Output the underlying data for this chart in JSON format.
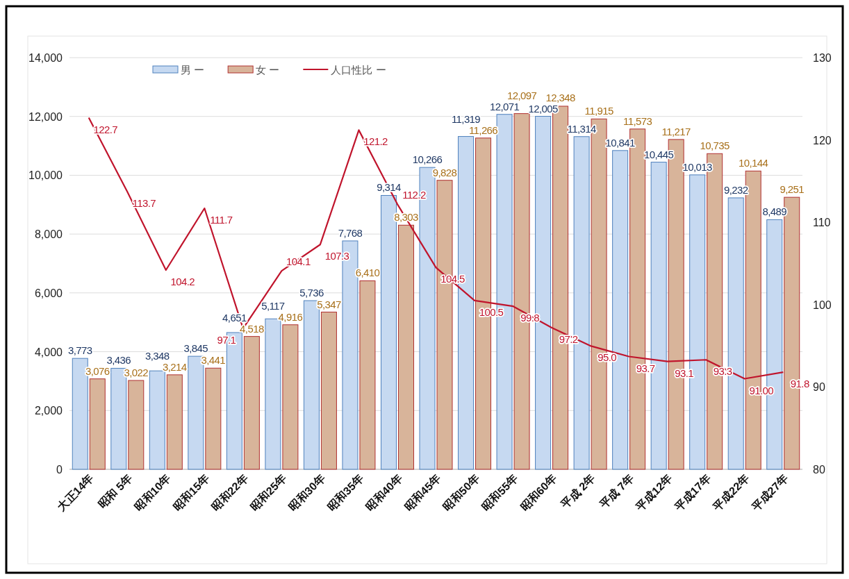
{
  "chart_data": {
    "type": "bar",
    "categories": [
      "大正14年",
      "昭和 5年",
      "昭和10年",
      "昭和15年",
      "昭和22年",
      "昭和25年",
      "昭和30年",
      "昭和35年",
      "昭和40年",
      "昭和45年",
      "昭和50年",
      "昭和55年",
      "昭和60年",
      "平成 2年",
      "平成 7年",
      "平成12年",
      "平成17年",
      "平成22年",
      "平成27年"
    ],
    "series": [
      {
        "name": "男 ー",
        "color": "#c6d9f1",
        "values": [
          3773,
          3436,
          3348,
          3845,
          4651,
          5117,
          5736,
          7768,
          9314,
          10266,
          11319,
          12071,
          12005,
          11314,
          10841,
          10445,
          10013,
          9232,
          8489
        ],
        "value_labels": [
          "3,773",
          "3,436",
          "3,348",
          "3,845",
          "4,651",
          "5,117",
          "5,736",
          "7,768",
          "9,314",
          "10,266",
          "11,319",
          "12,071",
          "12,005",
          "11,314",
          "10,841",
          "10,445",
          "10,013",
          "9,232",
          "8,489"
        ]
      },
      {
        "name": "女 ー",
        "color": "#d8b49a",
        "values": [
          3076,
          3022,
          3214,
          3441,
          4518,
          4916,
          5347,
          6410,
          8303,
          9828,
          11266,
          12097,
          12348,
          11915,
          11573,
          11217,
          10735,
          10144,
          9251
        ],
        "value_labels": [
          "3,076",
          "3,022",
          "3,214",
          "3,441",
          "4,518",
          "4,916",
          "5,347",
          "6,410",
          "8,303",
          "9,828",
          "11,266",
          "12,097",
          "12,348",
          "11,915",
          "11,573",
          "11,217",
          "10,735",
          "10,144",
          "9,251"
        ]
      },
      {
        "name": "人口性比 ー",
        "type": "line",
        "axis": "y2",
        "color": "#c0142c",
        "values": [
          122.7,
          113.7,
          104.2,
          111.7,
          97.1,
          104.1,
          107.3,
          121.2,
          112.2,
          104.5,
          100.5,
          99.8,
          97.2,
          95.0,
          93.7,
          93.1,
          93.3,
          91.0,
          91.8
        ],
        "value_labels": [
          "122.7",
          "113.7",
          "104.2",
          "111.7",
          "97.1",
          "104.1",
          "107.3",
          "121.2",
          "112.2",
          "104.5",
          "100.5",
          "99.8",
          "97.2",
          "95.0",
          "93.7",
          "93.1",
          "93.3",
          "91.00",
          "91.8"
        ]
      }
    ],
    "ylim": [
      0,
      14000
    ],
    "yticks": [
      {
        "value": 0,
        "label": "0"
      },
      {
        "value": 2000,
        "label": "2,000"
      },
      {
        "value": 4000,
        "label": "4,000"
      },
      {
        "value": 6000,
        "label": "6,000"
      },
      {
        "value": 8000,
        "label": "8,000"
      },
      {
        "value": 10000,
        "label": "10,000"
      },
      {
        "value": 12000,
        "label": "12,000"
      },
      {
        "value": 14000,
        "label": "14,000"
      }
    ],
    "y2lim": [
      80,
      130
    ],
    "y2ticks": [
      80,
      90,
      100,
      110,
      120,
      130
    ],
    "grid": "y",
    "legend": "top"
  }
}
